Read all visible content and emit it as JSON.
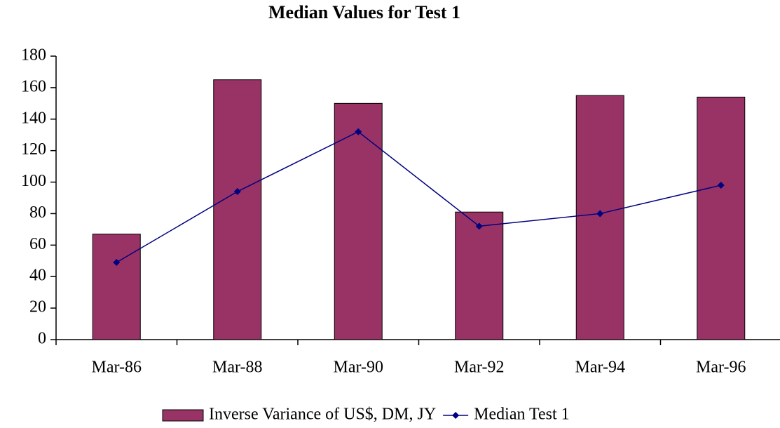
{
  "chart_data": {
    "type": "combo",
    "title": "Median Values for Test 1",
    "categories": [
      "Mar-86",
      "Mar-88",
      "Mar-90",
      "Mar-92",
      "Mar-94",
      "Mar-96"
    ],
    "series": [
      {
        "name": "Inverse Variance of US$, DM, JY",
        "type": "bar",
        "color": "#993366",
        "values": [
          67,
          165,
          150,
          81,
          155,
          154
        ]
      },
      {
        "name": "Median Test 1",
        "type": "line",
        "color": "#000080",
        "values": [
          49,
          94,
          132,
          72,
          80,
          98
        ]
      }
    ],
    "ylim": [
      0,
      180
    ],
    "yticks": [
      0,
      20,
      40,
      60,
      80,
      100,
      120,
      140,
      160,
      180
    ],
    "grid": false,
    "legend": "bottom"
  }
}
